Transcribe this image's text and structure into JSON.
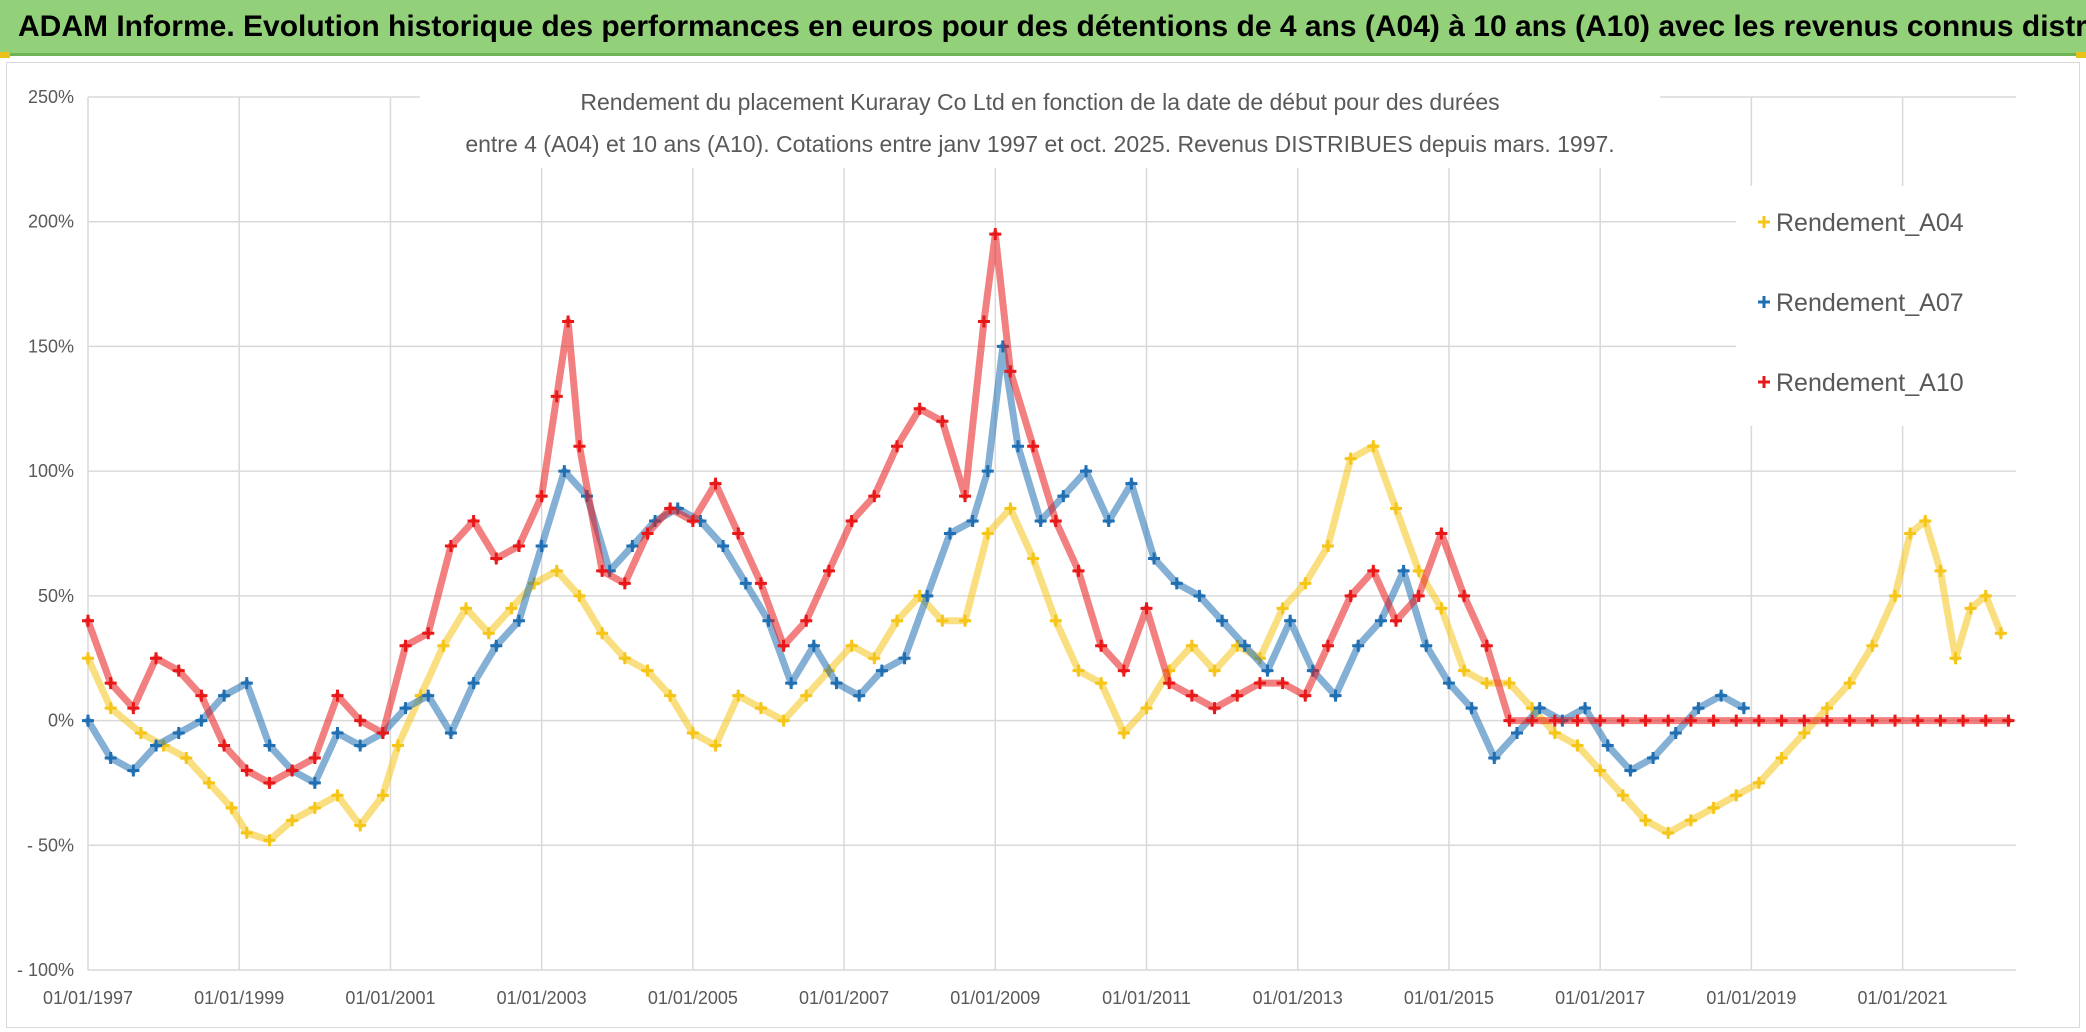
{
  "banner": {
    "title": "ADAM Informe. Evolution historique des performances en euros pour des détentions de 4 ans (A04) à 10 ans (A10) avec les revenus connus distribués"
  },
  "chart_data": {
    "type": "scatter",
    "title_line1": "Rendement du placement Kuraray Co Ltd en fonction de la date de début pour des durées",
    "title_line2": "entre 4 (A04) et 10 ans (A10). Cotations entre janv 1997 et oct. 2025. Revenus DISTRIBUES depuis mars. 1997.",
    "xlabel": "",
    "ylabel": "",
    "xlim": [
      1997.0,
      2022.5
    ],
    "ylim": [
      -100,
      250
    ],
    "y_ticks": [
      -100,
      -50,
      0,
      50,
      100,
      150,
      200,
      250
    ],
    "y_tick_labels": [
      "- 100%",
      "- 50%",
      "0%",
      "50%",
      "100%",
      "150%",
      "200%",
      "250%"
    ],
    "x_ticks": [
      1997,
      1999,
      2001,
      2003,
      2005,
      2007,
      2009,
      2011,
      2013,
      2015,
      2017,
      2019,
      2021
    ],
    "x_tick_labels": [
      "01/01/1997",
      "01/01/1999",
      "01/01/2001",
      "01/01/2003",
      "01/01/2005",
      "01/01/2007",
      "01/01/2009",
      "01/01/2011",
      "01/01/2013",
      "01/01/2015",
      "01/01/2017",
      "01/01/2019",
      "01/01/2021"
    ],
    "legend_position": "right",
    "series": [
      {
        "name": "Rendement_A04",
        "color": "#f5c518",
        "points": [
          [
            1997.0,
            25
          ],
          [
            1997.3,
            5
          ],
          [
            1997.7,
            -5
          ],
          [
            1998.0,
            -10
          ],
          [
            1998.3,
            -15
          ],
          [
            1998.6,
            -25
          ],
          [
            1998.9,
            -35
          ],
          [
            1999.1,
            -45
          ],
          [
            1999.4,
            -48
          ],
          [
            1999.7,
            -40
          ],
          [
            2000.0,
            -35
          ],
          [
            2000.3,
            -30
          ],
          [
            2000.6,
            -42
          ],
          [
            2000.9,
            -30
          ],
          [
            2001.1,
            -10
          ],
          [
            2001.4,
            10
          ],
          [
            2001.7,
            30
          ],
          [
            2002.0,
            45
          ],
          [
            2002.3,
            35
          ],
          [
            2002.6,
            45
          ],
          [
            2002.9,
            55
          ],
          [
            2003.2,
            60
          ],
          [
            2003.5,
            50
          ],
          [
            2003.8,
            35
          ],
          [
            2004.1,
            25
          ],
          [
            2004.4,
            20
          ],
          [
            2004.7,
            10
          ],
          [
            2005.0,
            -5
          ],
          [
            2005.3,
            -10
          ],
          [
            2005.6,
            10
          ],
          [
            2005.9,
            5
          ],
          [
            2006.2,
            0
          ],
          [
            2006.5,
            10
          ],
          [
            2006.8,
            20
          ],
          [
            2007.1,
            30
          ],
          [
            2007.4,
            25
          ],
          [
            2007.7,
            40
          ],
          [
            2008.0,
            50
          ],
          [
            2008.3,
            40
          ],
          [
            2008.6,
            40
          ],
          [
            2008.9,
            75
          ],
          [
            2009.2,
            85
          ],
          [
            2009.5,
            65
          ],
          [
            2009.8,
            40
          ],
          [
            2010.1,
            20
          ],
          [
            2010.4,
            15
          ],
          [
            2010.7,
            -5
          ],
          [
            2011.0,
            5
          ],
          [
            2011.3,
            20
          ],
          [
            2011.6,
            30
          ],
          [
            2011.9,
            20
          ],
          [
            2012.2,
            30
          ],
          [
            2012.5,
            25
          ],
          [
            2012.8,
            45
          ],
          [
            2013.1,
            55
          ],
          [
            2013.4,
            70
          ],
          [
            2013.7,
            105
          ],
          [
            2014.0,
            110
          ],
          [
            2014.3,
            85
          ],
          [
            2014.6,
            60
          ],
          [
            2014.9,
            45
          ],
          [
            2015.2,
            20
          ],
          [
            2015.5,
            15
          ],
          [
            2015.8,
            15
          ],
          [
            2016.1,
            5
          ],
          [
            2016.4,
            -5
          ],
          [
            2016.7,
            -10
          ],
          [
            2017.0,
            -20
          ],
          [
            2017.3,
            -30
          ],
          [
            2017.6,
            -40
          ],
          [
            2017.9,
            -45
          ],
          [
            2018.2,
            -40
          ],
          [
            2018.5,
            -35
          ],
          [
            2018.8,
            -30
          ],
          [
            2019.1,
            -25
          ],
          [
            2019.4,
            -15
          ],
          [
            2019.7,
            -5
          ],
          [
            2020.0,
            5
          ],
          [
            2020.3,
            15
          ],
          [
            2020.6,
            30
          ],
          [
            2020.9,
            50
          ],
          [
            2021.1,
            75
          ],
          [
            2021.3,
            80
          ],
          [
            2021.5,
            60
          ],
          [
            2021.7,
            25
          ],
          [
            2021.9,
            45
          ],
          [
            2022.1,
            50
          ],
          [
            2022.3,
            35
          ]
        ]
      },
      {
        "name": "Rendement_A07",
        "color": "#1f6fb2",
        "points": [
          [
            1997.0,
            0
          ],
          [
            1997.3,
            -15
          ],
          [
            1997.6,
            -20
          ],
          [
            1997.9,
            -10
          ],
          [
            1998.2,
            -5
          ],
          [
            1998.5,
            0
          ],
          [
            1998.8,
            10
          ],
          [
            1999.1,
            15
          ],
          [
            1999.4,
            -10
          ],
          [
            1999.7,
            -20
          ],
          [
            2000.0,
            -25
          ],
          [
            2000.3,
            -5
          ],
          [
            2000.6,
            -10
          ],
          [
            2000.9,
            -5
          ],
          [
            2001.2,
            5
          ],
          [
            2001.5,
            10
          ],
          [
            2001.8,
            -5
          ],
          [
            2002.1,
            15
          ],
          [
            2002.4,
            30
          ],
          [
            2002.7,
            40
          ],
          [
            2003.0,
            70
          ],
          [
            2003.3,
            100
          ],
          [
            2003.6,
            90
          ],
          [
            2003.9,
            60
          ],
          [
            2004.2,
            70
          ],
          [
            2004.5,
            80
          ],
          [
            2004.8,
            85
          ],
          [
            2005.1,
            80
          ],
          [
            2005.4,
            70
          ],
          [
            2005.7,
            55
          ],
          [
            2006.0,
            40
          ],
          [
            2006.3,
            15
          ],
          [
            2006.6,
            30
          ],
          [
            2006.9,
            15
          ],
          [
            2007.2,
            10
          ],
          [
            2007.5,
            20
          ],
          [
            2007.8,
            25
          ],
          [
            2008.1,
            50
          ],
          [
            2008.4,
            75
          ],
          [
            2008.7,
            80
          ],
          [
            2008.9,
            100
          ],
          [
            2009.1,
            150
          ],
          [
            2009.3,
            110
          ],
          [
            2009.6,
            80
          ],
          [
            2009.9,
            90
          ],
          [
            2010.2,
            100
          ],
          [
            2010.5,
            80
          ],
          [
            2010.8,
            95
          ],
          [
            2011.1,
            65
          ],
          [
            2011.4,
            55
          ],
          [
            2011.7,
            50
          ],
          [
            2012.0,
            40
          ],
          [
            2012.3,
            30
          ],
          [
            2012.6,
            20
          ],
          [
            2012.9,
            40
          ],
          [
            2013.2,
            20
          ],
          [
            2013.5,
            10
          ],
          [
            2013.8,
            30
          ],
          [
            2014.1,
            40
          ],
          [
            2014.4,
            60
          ],
          [
            2014.7,
            30
          ],
          [
            2015.0,
            15
          ],
          [
            2015.3,
            5
          ],
          [
            2015.6,
            -15
          ],
          [
            2015.9,
            -5
          ],
          [
            2016.2,
            5
          ],
          [
            2016.5,
            0
          ],
          [
            2016.8,
            5
          ],
          [
            2017.1,
            -10
          ],
          [
            2017.4,
            -20
          ],
          [
            2017.7,
            -15
          ],
          [
            2018.0,
            -5
          ],
          [
            2018.3,
            5
          ],
          [
            2018.6,
            10
          ],
          [
            2018.9,
            5
          ]
        ]
      },
      {
        "name": "Rendement_A10",
        "color": "#e81818",
        "points": [
          [
            1997.0,
            40
          ],
          [
            1997.3,
            15
          ],
          [
            1997.6,
            5
          ],
          [
            1997.9,
            25
          ],
          [
            1998.2,
            20
          ],
          [
            1998.5,
            10
          ],
          [
            1998.8,
            -10
          ],
          [
            1999.1,
            -20
          ],
          [
            1999.4,
            -25
          ],
          [
            1999.7,
            -20
          ],
          [
            2000.0,
            -15
          ],
          [
            2000.3,
            10
          ],
          [
            2000.6,
            0
          ],
          [
            2000.9,
            -5
          ],
          [
            2001.2,
            30
          ],
          [
            2001.5,
            35
          ],
          [
            2001.8,
            70
          ],
          [
            2002.1,
            80
          ],
          [
            2002.4,
            65
          ],
          [
            2002.7,
            70
          ],
          [
            2003.0,
            90
          ],
          [
            2003.2,
            130
          ],
          [
            2003.35,
            160
          ],
          [
            2003.5,
            110
          ],
          [
            2003.8,
            60
          ],
          [
            2004.1,
            55
          ],
          [
            2004.4,
            75
          ],
          [
            2004.7,
            85
          ],
          [
            2005.0,
            80
          ],
          [
            2005.3,
            95
          ],
          [
            2005.6,
            75
          ],
          [
            2005.9,
            55
          ],
          [
            2006.2,
            30
          ],
          [
            2006.5,
            40
          ],
          [
            2006.8,
            60
          ],
          [
            2007.1,
            80
          ],
          [
            2007.4,
            90
          ],
          [
            2007.7,
            110
          ],
          [
            2008.0,
            125
          ],
          [
            2008.3,
            120
          ],
          [
            2008.6,
            90
          ],
          [
            2008.85,
            160
          ],
          [
            2009.0,
            195
          ],
          [
            2009.2,
            140
          ],
          [
            2009.5,
            110
          ],
          [
            2009.8,
            80
          ],
          [
            2010.1,
            60
          ],
          [
            2010.4,
            30
          ],
          [
            2010.7,
            20
          ],
          [
            2011.0,
            45
          ],
          [
            2011.3,
            15
          ],
          [
            2011.6,
            10
          ],
          [
            2011.9,
            5
          ],
          [
            2012.2,
            10
          ],
          [
            2012.5,
            15
          ],
          [
            2012.8,
            15
          ],
          [
            2013.1,
            10
          ],
          [
            2013.4,
            30
          ],
          [
            2013.7,
            50
          ],
          [
            2014.0,
            60
          ],
          [
            2014.3,
            40
          ],
          [
            2014.6,
            50
          ],
          [
            2014.9,
            75
          ],
          [
            2015.2,
            50
          ],
          [
            2015.5,
            30
          ],
          [
            2015.8,
            0
          ],
          [
            2016.1,
            0
          ],
          [
            2016.4,
            0
          ],
          [
            2016.7,
            0
          ],
          [
            2017.0,
            0
          ],
          [
            2017.3,
            0
          ],
          [
            2017.6,
            0
          ],
          [
            2017.9,
            0
          ],
          [
            2018.2,
            0
          ],
          [
            2018.5,
            0
          ],
          [
            2018.8,
            0
          ],
          [
            2019.1,
            0
          ],
          [
            2019.4,
            0
          ],
          [
            2019.7,
            0
          ],
          [
            2020.0,
            0
          ],
          [
            2020.3,
            0
          ],
          [
            2020.6,
            0
          ],
          [
            2020.9,
            0
          ],
          [
            2021.2,
            0
          ],
          [
            2021.5,
            0
          ],
          [
            2021.8,
            0
          ],
          [
            2022.1,
            0
          ],
          [
            2022.4,
            0
          ]
        ]
      }
    ]
  }
}
